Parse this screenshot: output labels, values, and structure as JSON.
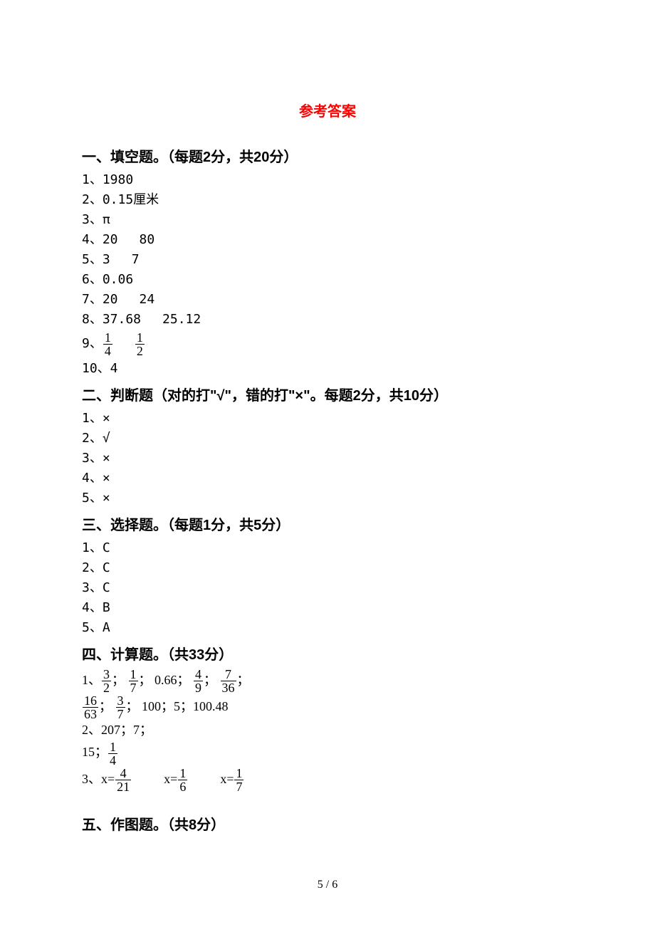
{
  "title": "参考答案",
  "sections": {
    "s1": {
      "header": "一、填空题。（每题2分，共20分）",
      "answers": {
        "a1": "1、1980",
        "a2": "2、0.15厘米",
        "a3": "3、π",
        "a4_prefix": "4、20",
        "a4_suffix": "80",
        "a5_prefix": "5、3",
        "a5_suffix": "7",
        "a6": "6、0.06",
        "a7_prefix": "7、20",
        "a7_suffix": "24",
        "a8_prefix": "8、37.68",
        "a8_suffix": "25.12",
        "a9_prefix": "9、",
        "a9_f1_num": "1",
        "a9_f1_den": "4",
        "a9_f2_num": "1",
        "a9_f2_den": "2",
        "a10": "10、4"
      }
    },
    "s2": {
      "header": "二、判断题（对的打\"√\"，错的打\"×\"。每题2分，共10分）",
      "answers": {
        "a1": "1、×",
        "a2": "2、√",
        "a3": "3、×",
        "a4": "4、×",
        "a5": "5、×"
      }
    },
    "s3": {
      "header": "三、选择题。（每题1分，共5分）",
      "answers": {
        "a1": "1、C",
        "a2": "2、C",
        "a3": "3、C",
        "a4": "4、B",
        "a5": "5、A"
      }
    },
    "s4": {
      "header": "四、计算题。（共33分）",
      "a1": {
        "prefix": "1、",
        "f1_num": "3",
        "f1_den": "2",
        "sep1": "；",
        "f2_num": "1",
        "f2_den": "7",
        "sep2": "；",
        "dec1": "0.66",
        "sep3": "；",
        "f3_num": "4",
        "f3_den": "9",
        "sep4": "；",
        "f4_num": "7",
        "f4_den": "36",
        "sep5": "；",
        "f5_num": "16",
        "f5_den": "63",
        "sep6": "；",
        "f6_num": "3",
        "f6_den": "7",
        "sep7": "；",
        "rest": "100；5；100.48"
      },
      "a2": {
        "line1": "2、207；7；",
        "line2_prefix": "15；",
        "line2_f_num": "1",
        "line2_f_den": "4"
      },
      "a3": {
        "prefix": "3、x=",
        "f1_num": "4",
        "f1_den": "21",
        "mid1": "x=",
        "f2_num": "1",
        "f2_den": "6",
        "mid2": "x=",
        "f3_num": "1",
        "f3_den": "7"
      }
    },
    "s5": {
      "header": "五、作图题。（共8分）"
    }
  },
  "pageNumber": "5 / 6",
  "colors": {
    "title": "#ff0000",
    "text": "#000000",
    "background": "#ffffff"
  }
}
